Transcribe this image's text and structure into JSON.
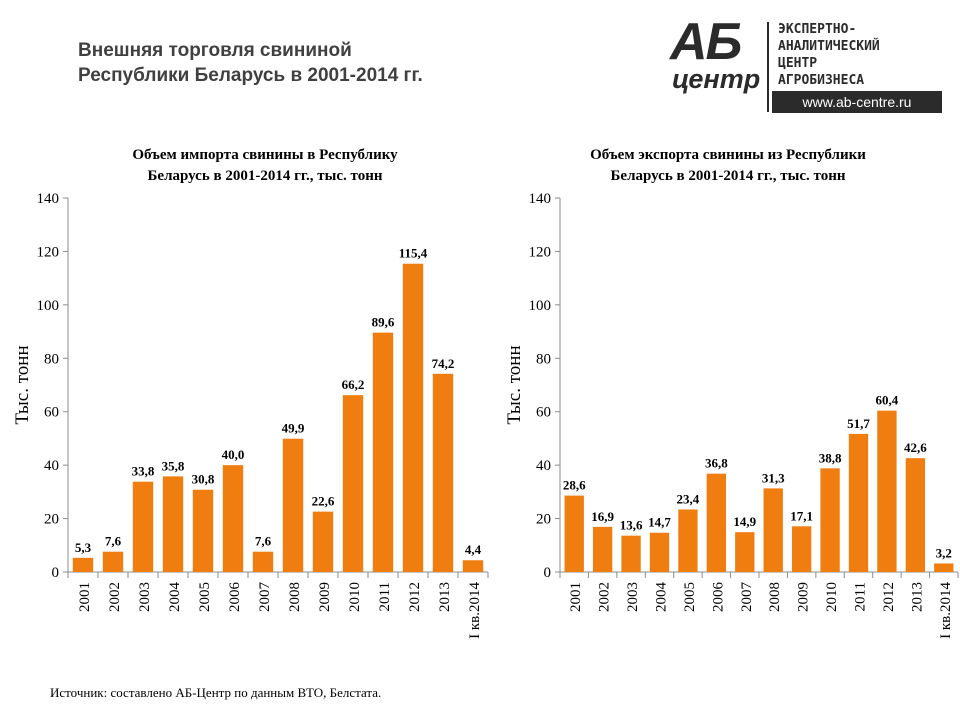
{
  "page_title": {
    "line1": "Внешняя торговля свининой",
    "line2": "Республики Беларусь в 2001-2014 гг."
  },
  "logo": {
    "mark_top": "АБ",
    "mark_bottom": "центр",
    "line1": "ЭКСПЕРТНО-",
    "line2": "АНАЛИТИЧЕСКИЙ",
    "line3": "ЦЕНТР",
    "line4": "АГРОБИЗНЕСА",
    "url": "www.ab-centre.ru"
  },
  "source": "Источник: составлено АБ-Центр по данным ВТО,  Белстата.",
  "colors": {
    "bar": "#EF7D10",
    "axis": "#8C8C8C"
  },
  "chart_data": [
    {
      "type": "bar",
      "title_line1": "Объем импорта свинины в Республику",
      "title_line2": "Беларусь в 2001-2014 гг., тыс. тонн",
      "ylabel": "Тыс.  тонн",
      "xlabel": "",
      "ylim": [
        0,
        140
      ],
      "yticks": [
        0,
        20,
        40,
        60,
        80,
        100,
        120,
        140
      ],
      "grid": false,
      "categories": [
        "2001",
        "2002",
        "2003",
        "2004",
        "2005",
        "2006",
        "2007",
        "2008",
        "2009",
        "2010",
        "2011",
        "2012",
        "2013",
        "I кв.2014"
      ],
      "values": [
        5.3,
        7.6,
        33.8,
        35.8,
        30.8,
        40.0,
        7.6,
        49.9,
        22.6,
        66.2,
        89.6,
        115.4,
        74.2,
        4.4
      ],
      "value_labels": [
        "5,3",
        "7,6",
        "33,8",
        "35,8",
        "30,8",
        "40,0",
        "7,6",
        "49,9",
        "22,6",
        "66,2",
        "89,6",
        "115,4",
        "74,2",
        "4,4"
      ]
    },
    {
      "type": "bar",
      "title_line1": "Объем экспорта свинины из Республики",
      "title_line2": "Беларусь в 2001-2014 гг., тыс. тонн",
      "ylabel": "Тыс.  тонн",
      "xlabel": "",
      "ylim": [
        0,
        140
      ],
      "yticks": [
        0,
        20,
        40,
        60,
        80,
        100,
        120,
        140
      ],
      "grid": false,
      "categories": [
        "2001",
        "2002",
        "2003",
        "2004",
        "2005",
        "2006",
        "2007",
        "2008",
        "2009",
        "2010",
        "2011",
        "2012",
        "2013",
        "I кв.2014"
      ],
      "values": [
        28.6,
        16.9,
        13.6,
        14.7,
        23.4,
        36.8,
        14.9,
        31.3,
        17.1,
        38.8,
        51.7,
        60.4,
        42.6,
        3.2
      ],
      "value_labels": [
        "28,6",
        "16,9",
        "13,6",
        "14,7",
        "23,4",
        "36,8",
        "14,9",
        "31,3",
        "17,1",
        "38,8",
        "51,7",
        "60,4",
        "42,6",
        "3,2"
      ]
    }
  ]
}
